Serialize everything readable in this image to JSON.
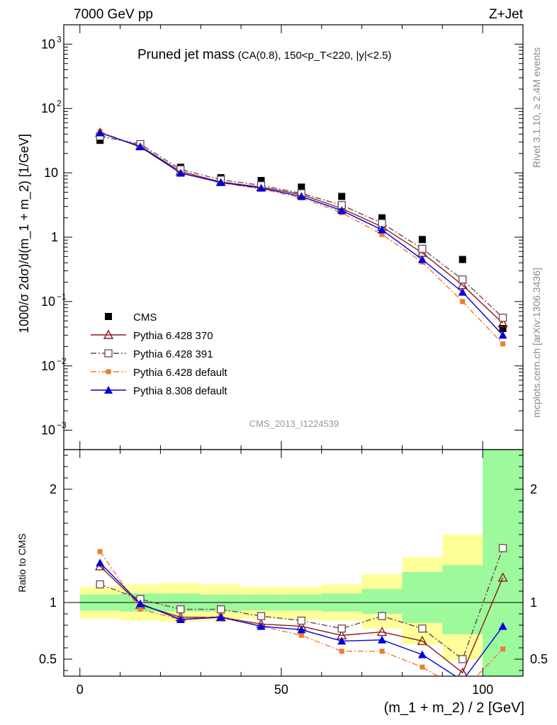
{
  "header": {
    "left": "7000 GeV pp",
    "right": "Z+Jet"
  },
  "side_labels": {
    "rivet": "Rivet 3.1.10, ≥ 2.4M events",
    "mcplots": "mcplots.cern.ch [arXiv:1306.3436]"
  },
  "chart_data": [
    {
      "type": "line",
      "title": "Pruned jet mass",
      "subtitle": "(CA(0.8), 150<p_T<220, |y|<2.5)",
      "watermark": "CMS_2013_I1224539",
      "ylabel": "1000/σ 2dσ)/d(m_1 + m_2) [1/GeV]",
      "xlabel": "",
      "log_y": true,
      "xlim": [
        -4,
        110
      ],
      "ylim": [
        0.0005,
        2000
      ],
      "y_ticks": [
        {
          "value": 0.001,
          "label": "10",
          "sup": "−3"
        },
        {
          "value": 0.01,
          "label": "10",
          "sup": "−2"
        },
        {
          "value": 0.1,
          "label": "10",
          "sup": "−1"
        },
        {
          "value": 1,
          "label": "1",
          "sup": ""
        },
        {
          "value": 10,
          "label": "10",
          "sup": ""
        },
        {
          "value": 100,
          "label": "10",
          "sup": "2"
        },
        {
          "value": 1000,
          "label": "10",
          "sup": "3"
        }
      ],
      "x": [
        5,
        15,
        25,
        35,
        45,
        55,
        65,
        75,
        85,
        95,
        105
      ],
      "series": [
        {
          "name": "CMS",
          "color": "#000000",
          "marker": "square-filled",
          "line": "none",
          "values": [
            32,
            27,
            12.2,
            8.4,
            7.6,
            6.0,
            4.3,
            2.0,
            0.92,
            0.45,
            0.038
          ]
        },
        {
          "name": "Pythia 6.428 370",
          "color": "#8b1a1a",
          "marker": "triangle-open",
          "line": "solid",
          "values": [
            42,
            26,
            10.5,
            7.2,
            6.0,
            4.6,
            2.8,
            1.45,
            0.57,
            0.18,
            0.046
          ]
        },
        {
          "name": "Pythia 6.428 391",
          "color": "#6b4650",
          "marker": "square-open",
          "line": "dashdot",
          "values": [
            37,
            28,
            11.3,
            7.8,
            6.4,
            4.8,
            3.15,
            1.65,
            0.66,
            0.22,
            0.056
          ]
        },
        {
          "name": "Pythia 6.428 default",
          "color": "#f07c2b",
          "marker": "square-small-filled",
          "line": "dashdot",
          "values": [
            44,
            25,
            10.0,
            7.0,
            5.6,
            4.1,
            2.4,
            1.1,
            0.41,
            0.1,
            0.022
          ]
        },
        {
          "name": "Pythia 8.308 default",
          "color": "#0000dd",
          "marker": "triangle-filled",
          "line": "solid",
          "values": [
            42,
            25.5,
            9.9,
            7.1,
            5.8,
            4.3,
            2.6,
            1.3,
            0.45,
            0.14,
            0.03
          ]
        }
      ]
    },
    {
      "type": "line",
      "title": "",
      "xlabel": "(m_1 + m_2) / 2 [GeV]",
      "ylabel": "Ratio to CMS",
      "log_y": false,
      "xlim": [
        -4,
        110
      ],
      "ylim": [
        0.35,
        2.35
      ],
      "x_ticks": [
        0,
        50,
        100
      ],
      "y_ticks": [
        0.5,
        1,
        2
      ],
      "reference_line": 1,
      "uncertainty_bands": {
        "edges": [
          0,
          10,
          20,
          30,
          40,
          50,
          60,
          70,
          80,
          90,
          100,
          110
        ],
        "inner_low": [
          0.93,
          0.92,
          0.92,
          0.92,
          0.93,
          0.93,
          0.92,
          0.9,
          0.82,
          0.72,
          0.35
        ],
        "inner_high": [
          1.07,
          1.08,
          1.08,
          1.07,
          1.07,
          1.07,
          1.08,
          1.12,
          1.27,
          1.33,
          2.35
        ],
        "outer_low": [
          0.86,
          0.84,
          0.83,
          0.84,
          0.86,
          0.85,
          0.84,
          0.77,
          0.63,
          0.49,
          0.35
        ],
        "outer_high": [
          1.14,
          1.16,
          1.17,
          1.16,
          1.14,
          1.14,
          1.16,
          1.25,
          1.4,
          1.6,
          2.35
        ],
        "inner_color": "#9cf99c",
        "outer_color": "#ffff99"
      },
      "x": [
        5,
        15,
        25,
        35,
        45,
        55,
        65,
        75,
        85,
        95,
        105
      ],
      "series": [
        {
          "name": "Pythia 6.428 370",
          "color": "#8b1a1a",
          "marker": "triangle-open",
          "line": "solid",
          "values": [
            1.32,
            0.98,
            0.87,
            0.87,
            0.81,
            0.79,
            0.71,
            0.74,
            0.66,
            0.38,
            1.22
          ]
        },
        {
          "name": "Pythia 6.428 391",
          "color": "#6b4650",
          "marker": "square-open",
          "line": "dashdot",
          "values": [
            1.16,
            1.03,
            0.94,
            0.94,
            0.88,
            0.84,
            0.77,
            0.88,
            0.77,
            0.5,
            1.48
          ]
        },
        {
          "name": "Pythia 6.428 default",
          "color": "#f07c2b",
          "marker": "square-small-filled",
          "line": "dashdot",
          "values": [
            1.45,
            0.94,
            0.85,
            0.88,
            0.79,
            0.71,
            0.57,
            0.57,
            0.43,
            0.22,
            0.59
          ]
        },
        {
          "name": "Pythia 8.308 default",
          "color": "#0000dd",
          "marker": "triangle-filled",
          "line": "solid",
          "values": [
            1.35,
            0.99,
            0.85,
            0.87,
            0.79,
            0.76,
            0.66,
            0.67,
            0.54,
            0.31,
            0.79
          ]
        }
      ]
    }
  ]
}
